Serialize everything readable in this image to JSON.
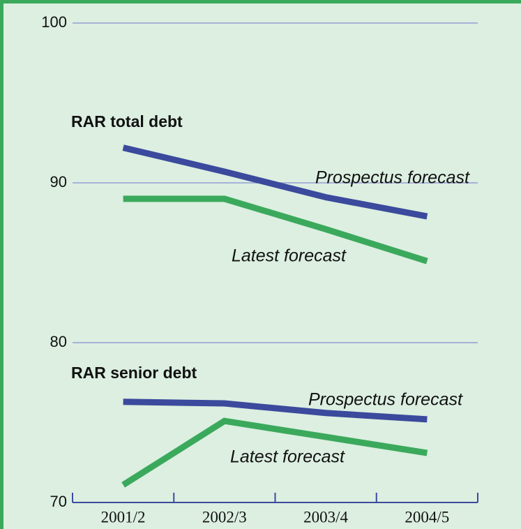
{
  "chart_data": {
    "type": "line",
    "annotations": [
      "RAR total debt",
      "RAR senior debt"
    ],
    "categories": [
      "2001/2",
      "2002/3",
      "2003/4",
      "2004/5"
    ],
    "series": [
      {
        "name": "Prospectus forecast",
        "color": "#3b4a9c",
        "values": [
          92.2,
          90.7,
          89.1,
          87.9
        ]
      },
      {
        "name": "Latest forecast",
        "color": "#3ba95c",
        "values": [
          89.0,
          89.0,
          87.1,
          85.1
        ]
      },
      {
        "name": "Prospectus forecast",
        "color": "#3b4a9c",
        "values": [
          76.3,
          76.2,
          75.6,
          75.2
        ]
      },
      {
        "name": "Latest forecast",
        "color": "#3ba95c",
        "values": [
          71.1,
          75.1,
          74.1,
          73.1
        ]
      }
    ],
    "ylim": [
      70,
      100
    ],
    "yticks": [
      70,
      80,
      90,
      100
    ],
    "grid": true
  }
}
